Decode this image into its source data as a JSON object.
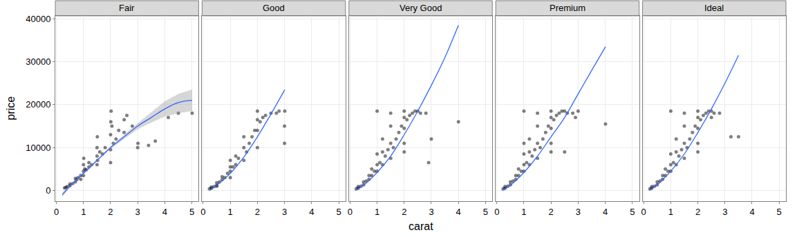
{
  "chart_data": {
    "type": "scatter",
    "x_label": "carat",
    "y_label": "price",
    "xlim": [
      -0.04,
      5.25
    ],
    "ylim": [
      -2500,
      40700
    ],
    "xticks": [
      0,
      1,
      2,
      3,
      4,
      5
    ],
    "yticks": [
      0,
      10000,
      20000,
      30000,
      40000
    ],
    "grid": true,
    "panels": [
      {
        "title": "Fair",
        "series": [
          {
            "type": "scatter",
            "marker": "circle",
            "color": "#000000",
            "x": [
              0.3,
              0.35,
              0.4,
              0.5,
              0.5,
              0.6,
              0.7,
              0.7,
              0.75,
              0.8,
              0.9,
              0.9,
              1.0,
              1.0,
              1.0,
              1.01,
              1.05,
              1.1,
              1.2,
              1.2,
              1.3,
              1.5,
              1.5,
              1.5,
              1.51,
              1.52,
              1.6,
              1.7,
              1.8,
              2.0,
              2.0,
              2.0,
              2.01,
              2.02,
              2.05,
              2.1,
              2.2,
              2.3,
              2.5,
              2.5,
              2.6,
              2.8,
              3.0,
              3.01,
              3.4,
              3.65,
              4.13,
              4.5,
              5.01
            ],
            "values": [
              600,
              700,
              900,
              1100,
              1500,
              1600,
              2000,
              2800,
              2500,
              3000,
              3500,
              2600,
              3500,
              4500,
              6000,
              7500,
              5000,
              4800,
              5500,
              6500,
              6000,
              6000,
              8000,
              10000,
              12500,
              7000,
              9000,
              8500,
              10000,
              6500,
              9500,
              13000,
              16000,
              18500,
              15000,
              11000,
              12000,
              14000,
              13500,
              16500,
              17500,
              15000,
              10000,
              11000,
              10500,
              11500,
              17000,
              18000,
              18000
            ]
          },
          {
            "type": "line",
            "color": "#3366FF",
            "x": [
              0.22,
              0.5,
              1,
              1.5,
              2,
              2.5,
              3,
              3.5,
              4,
              4.5,
              5.01
            ],
            "values": [
              -1000,
              1000,
              4000,
              7000,
              10000,
              12500,
              15000,
              17000,
              19000,
              20500,
              21000
            ],
            "lower": [
              -1500,
              700,
              3800,
              6700,
              9700,
              12000,
              14300,
              15800,
              17200,
              18000,
              18500
            ],
            "upper": [
              -500,
              1300,
              4200,
              7300,
              10300,
              13000,
              15700,
              18200,
              20800,
              22500,
              23500
            ]
          }
        ]
      },
      {
        "title": "Good",
        "series": [
          {
            "type": "scatter",
            "marker": "circle",
            "color": "#000000",
            "x": [
              0.23,
              0.3,
              0.3,
              0.4,
              0.5,
              0.5,
              0.6,
              0.7,
              0.7,
              0.8,
              0.9,
              1.0,
              1.0,
              1.0,
              1.1,
              1.2,
              1.2,
              1.3,
              1.5,
              1.5,
              1.5,
              1.6,
              1.7,
              1.8,
              1.9,
              2.0,
              2.0,
              2.0,
              2.0,
              2.1,
              2.2,
              2.3,
              2.5,
              2.7,
              2.8,
              3.0,
              3.0,
              3.01,
              1.0,
              0.5
            ],
            "values": [
              400,
              500,
              800,
              900,
              1200,
              1800,
              2000,
              2500,
              3200,
              3000,
              4000,
              4500,
              5500,
              7000,
              5500,
              6000,
              8000,
              7500,
              7000,
              10000,
              12500,
              9000,
              11000,
              12500,
              14000,
              10000,
              14000,
              16500,
              18500,
              16000,
              17000,
              17500,
              18000,
              18000,
              18500,
              11000,
              15000,
              18500,
              3000,
              1000
            ]
          },
          {
            "type": "line",
            "color": "#3366FF",
            "x": [
              0.23,
              0.5,
              1,
              1.5,
              2,
              2.5,
              3.01
            ],
            "values": [
              0,
              1200,
              4000,
              7800,
              12500,
              17800,
              23500
            ]
          }
        ]
      },
      {
        "title": "Very Good",
        "series": [
          {
            "type": "scatter",
            "marker": "circle",
            "color": "#000000",
            "x": [
              0.23,
              0.3,
              0.3,
              0.4,
              0.5,
              0.5,
              0.6,
              0.7,
              0.7,
              0.8,
              0.9,
              1.0,
              1.0,
              1.0,
              1.1,
              1.2,
              1.2,
              1.3,
              1.4,
              1.5,
              1.5,
              1.5,
              1.6,
              1.7,
              1.8,
              1.9,
              2.0,
              2.0,
              2.0,
              2.0,
              2.1,
              2.2,
              2.3,
              2.4,
              2.5,
              2.6,
              2.8,
              2.9,
              3.0,
              4.0,
              1.0,
              0.8,
              1.5,
              2.0,
              1.2
            ],
            "values": [
              400,
              500,
              900,
              1000,
              1300,
              2000,
              2200,
              2600,
              3500,
              3500,
              4500,
              4500,
              6000,
              8500,
              6500,
              6000,
              9000,
              8000,
              9500,
              7500,
              11000,
              15000,
              10000,
              12000,
              13500,
              15000,
              11000,
              14500,
              17000,
              18500,
              16500,
              17500,
              18000,
              18500,
              18500,
              18000,
              18000,
              6500,
              12000,
              16000,
              18500,
              5000,
              18000,
              9000,
              12000
            ]
          },
          {
            "type": "line",
            "color": "#3366FF",
            "x": [
              0.2,
              0.5,
              1,
              1.5,
              2,
              2.5,
              3,
              3.5,
              4.0
            ],
            "values": [
              0,
              1200,
              4200,
              8000,
              13000,
              18500,
              24500,
              31000,
              38500
            ]
          }
        ]
      },
      {
        "title": "Premium",
        "series": [
          {
            "type": "scatter",
            "marker": "circle",
            "color": "#000000",
            "x": [
              0.23,
              0.3,
              0.3,
              0.4,
              0.5,
              0.5,
              0.6,
              0.7,
              0.7,
              0.8,
              0.9,
              1.0,
              1.0,
              1.0,
              1.1,
              1.2,
              1.2,
              1.3,
              1.4,
              1.5,
              1.5,
              1.5,
              1.6,
              1.7,
              1.8,
              1.9,
              2.0,
              2.0,
              2.0,
              2.0,
              2.1,
              2.2,
              2.3,
              2.4,
              2.5,
              2.6,
              2.8,
              2.9,
              3.0,
              4.01,
              1.0,
              0.8,
              1.5,
              2.0,
              1.2,
              2.5,
              1.0
            ],
            "values": [
              400,
              500,
              900,
              1000,
              1300,
              2000,
              2200,
              2600,
              3500,
              3500,
              4500,
              4500,
              6000,
              8500,
              6500,
              6000,
              9000,
              8000,
              9500,
              7500,
              11000,
              15000,
              10000,
              12000,
              13500,
              15000,
              11000,
              14500,
              17000,
              18500,
              16500,
              17500,
              18000,
              18500,
              18500,
              18000,
              18000,
              17000,
              18500,
              15500,
              18500,
              5000,
              18000,
              9000,
              12000,
              9000,
              11000
            ]
          },
          {
            "type": "line",
            "color": "#3366FF",
            "x": [
              0.2,
              0.5,
              1,
              1.5,
              2,
              2.5,
              3,
              3.5,
              4.01
            ],
            "values": [
              0,
              1200,
              4200,
              8000,
              12500,
              17000,
              22500,
              28000,
              33500
            ]
          }
        ]
      },
      {
        "title": "Ideal",
        "series": [
          {
            "type": "scatter",
            "marker": "circle",
            "color": "#000000",
            "x": [
              0.23,
              0.3,
              0.3,
              0.4,
              0.5,
              0.5,
              0.6,
              0.7,
              0.7,
              0.8,
              0.9,
              1.0,
              1.0,
              1.0,
              1.1,
              1.2,
              1.2,
              1.3,
              1.4,
              1.5,
              1.5,
              1.5,
              1.6,
              1.7,
              1.8,
              1.9,
              2.0,
              2.0,
              2.0,
              2.0,
              2.1,
              2.2,
              2.3,
              2.4,
              2.5,
              2.6,
              2.8,
              2.5,
              3.22,
              3.5,
              1.0,
              0.8,
              1.5,
              2.0,
              1.2
            ],
            "values": [
              400,
              500,
              900,
              1000,
              1300,
              2000,
              2200,
              2600,
              3500,
              3500,
              4500,
              4500,
              6000,
              8500,
              6500,
              6000,
              9000,
              8000,
              9500,
              7500,
              11000,
              15000,
              10000,
              12000,
              13500,
              15000,
              11000,
              14500,
              17000,
              18500,
              16500,
              17500,
              18000,
              18500,
              18500,
              18000,
              18000,
              17000,
              12500,
              12500,
              18500,
              5000,
              18000,
              9000,
              12000
            ]
          },
          {
            "type": "line",
            "color": "#3366FF",
            "x": [
              0.2,
              0.5,
              1,
              1.5,
              2,
              2.5,
              3,
              3.5
            ],
            "values": [
              0,
              1300,
              4500,
              8500,
              13500,
              19000,
              25000,
              31500
            ]
          }
        ]
      }
    ]
  }
}
